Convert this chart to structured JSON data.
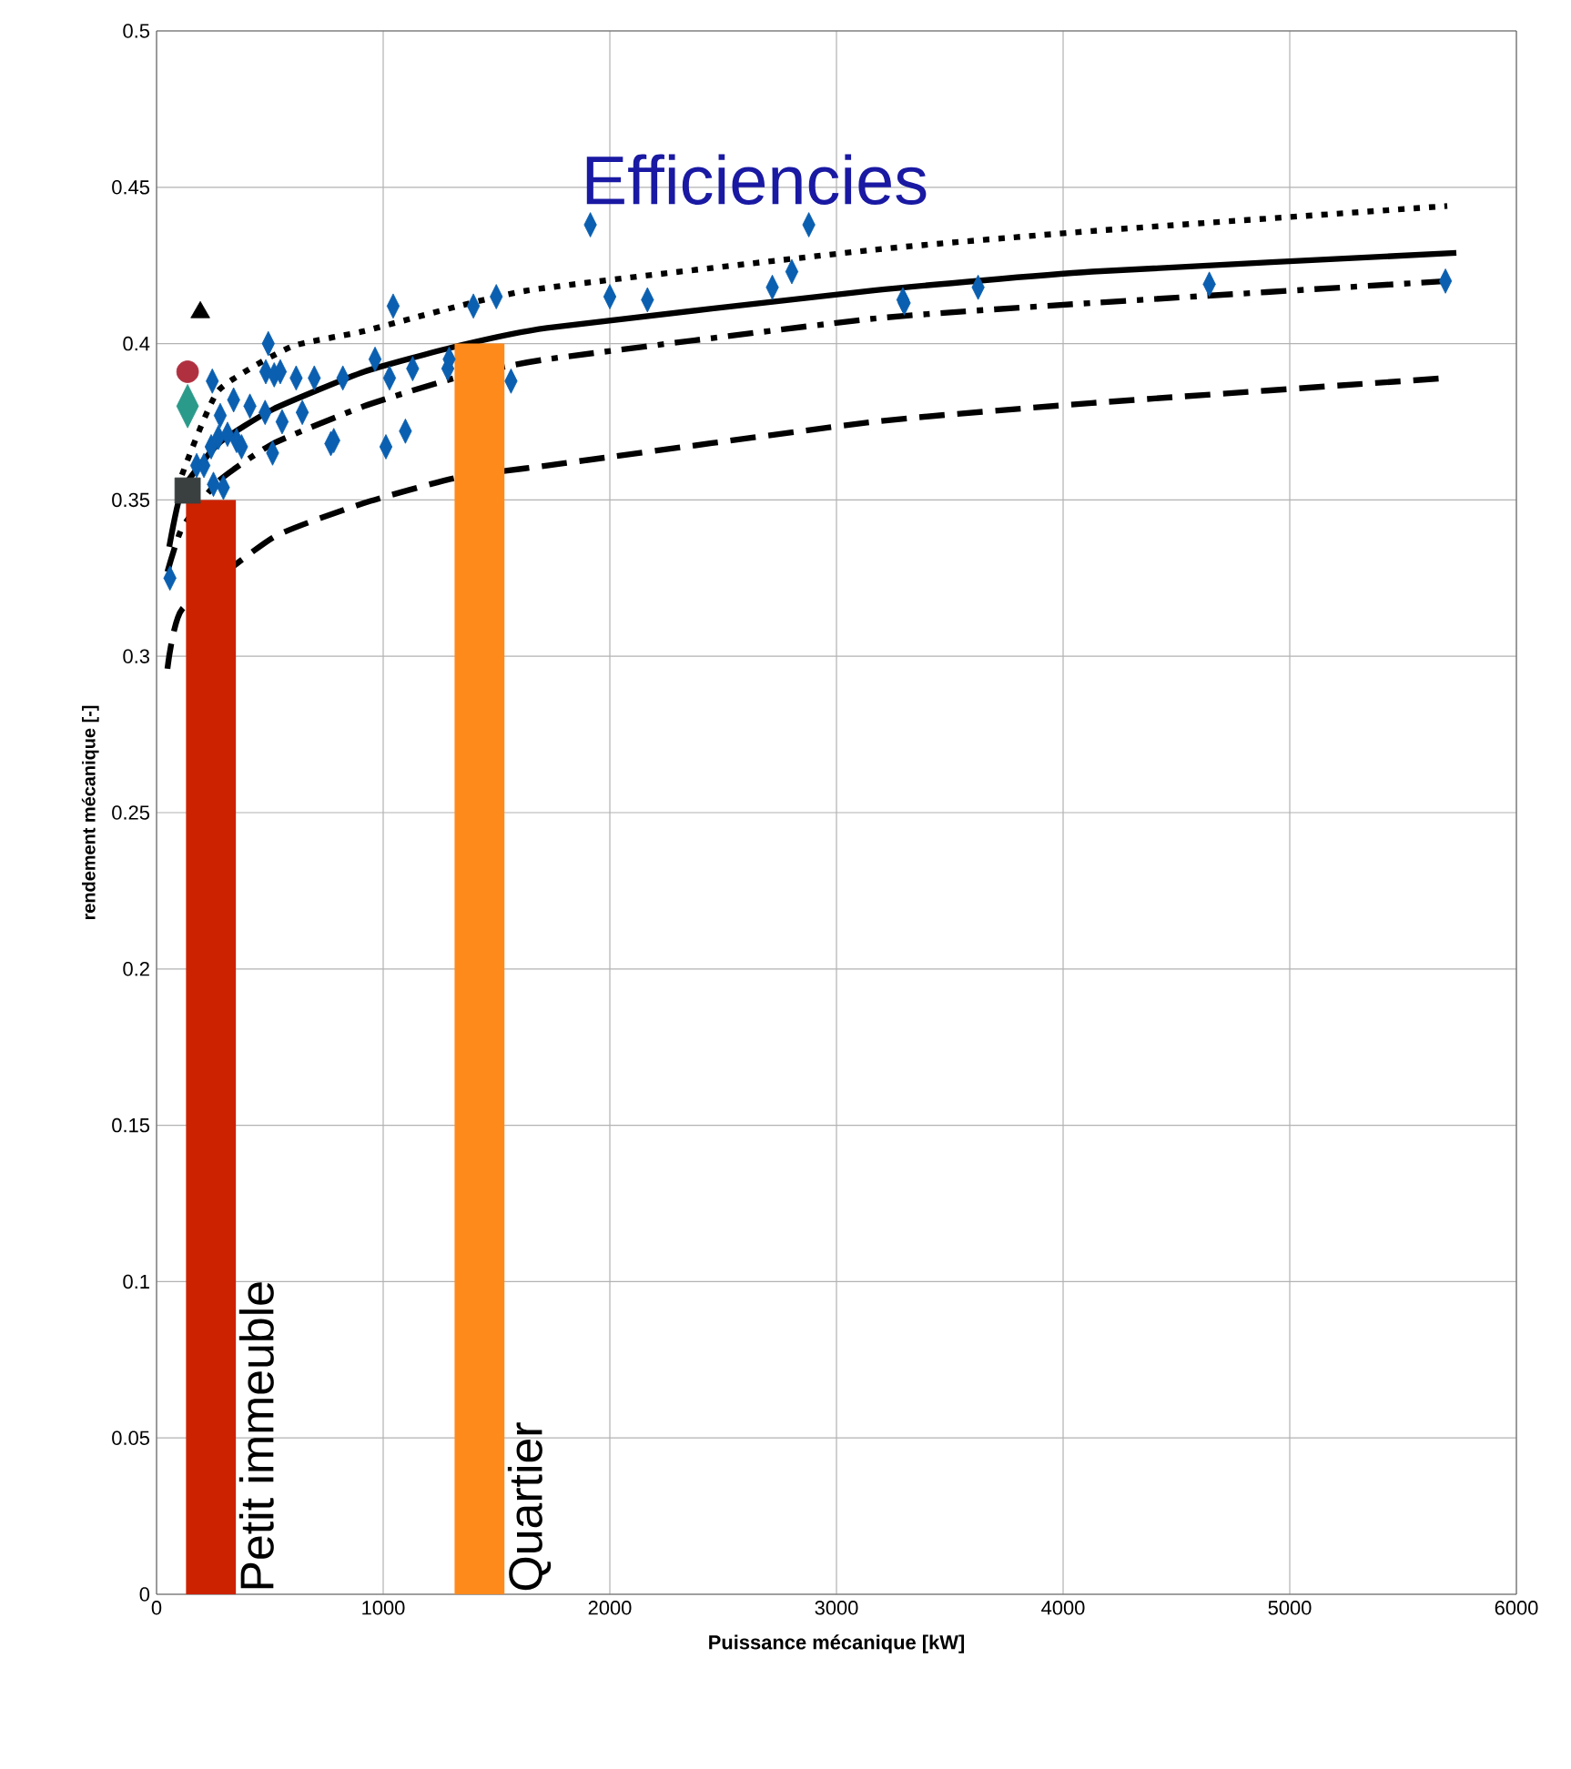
{
  "chart_data": {
    "type": "scatter",
    "title": "Efficiencies",
    "xlabel": "Puissance mécanique [kW]",
    "ylabel": "rendement mécanique [-]",
    "xlim": [
      0,
      6000
    ],
    "ylim": [
      0,
      0.5
    ],
    "xticks": [
      0,
      1000,
      2000,
      3000,
      4000,
      5000,
      6000
    ],
    "yticks": [
      0,
      0.05,
      0.1,
      0.15,
      0.2,
      0.25,
      0.3,
      0.35,
      0.4,
      0.45,
      0.5
    ],
    "grid": true,
    "series": [
      {
        "type": "line",
        "line_style": "dotted",
        "color": "#000000",
        "x": [
          112,
          273,
          594,
          916,
          1639,
          3165,
          4128,
          5695
        ],
        "values": [
          0.358,
          0.385,
          0.399,
          0.404,
          0.417,
          0.43,
          0.436,
          0.444
        ]
      },
      {
        "type": "line",
        "line_style": "solid",
        "color": "#000000",
        "x": [
          56,
          112,
          273,
          514,
          916,
          1317,
          1723,
          3165,
          4128,
          5735
        ],
        "values": [
          0.335,
          0.353,
          0.368,
          0.379,
          0.391,
          0.399,
          0.405,
          0.417,
          0.423,
          0.429
        ]
      },
      {
        "type": "line",
        "line_style": "dashdot",
        "color": "#000000",
        "x": [
          48,
          112,
          273,
          514,
          916,
          1317,
          1723,
          3165,
          4128,
          5695
        ],
        "values": [
          0.327,
          0.341,
          0.356,
          0.368,
          0.38,
          0.389,
          0.395,
          0.408,
          0.413,
          0.42
        ]
      },
      {
        "type": "line",
        "line_style": "dashed",
        "color": "#000000",
        "x": [
          48,
          112,
          273,
          514,
          916,
          1317,
          1723,
          3165,
          4128,
          5695
        ],
        "values": [
          0.296,
          0.315,
          null,
          0.338,
          0.349,
          0.357,
          0.361,
          0.375,
          0.381,
          0.389
        ]
      },
      {
        "type": "bar",
        "name": "Petit immeuble",
        "color": "#cc2200",
        "x": [
          240
        ],
        "values": [
          0.35
        ]
      },
      {
        "type": "bar",
        "name": "Quartier",
        "color": "#ff8a1c",
        "x": [
          1425
        ],
        "values": [
          0.4
        ]
      },
      {
        "marker": "diamond",
        "color": "#0a5fb0",
        "x": [
          59,
          246,
          493,
          340,
          281,
          412,
          482,
          519,
          546,
          479,
          554,
          616,
          696,
          643,
          822,
          769,
          782,
          964,
          1028,
          1130,
          1012,
          1098,
          1044,
          1398,
          1499,
          1285,
          1291,
          1564,
          241,
          273,
          313,
          353,
          375,
          177,
          209,
          251,
          295,
          512,
          1914,
          2000,
          2166,
          2717,
          2803,
          2878,
          3293,
          3299,
          3625,
          4645,
          5687
        ],
        "values": [
          0.325,
          0.388,
          0.4,
          0.382,
          0.377,
          0.38,
          0.391,
          0.39,
          0.391,
          0.378,
          0.375,
          0.389,
          0.389,
          0.378,
          0.389,
          0.368,
          0.369,
          0.395,
          0.389,
          0.392,
          0.367,
          0.372,
          0.412,
          0.412,
          0.415,
          0.392,
          0.395,
          0.388,
          0.367,
          0.37,
          0.371,
          0.369,
          0.367,
          0.361,
          0.361,
          0.355,
          0.354,
          0.365,
          0.438,
          0.415,
          0.414,
          0.418,
          0.423,
          0.438,
          0.414,
          0.413,
          0.418,
          0.419,
          0.42
        ]
      },
      {
        "marker": "triangle",
        "color": "#000000",
        "x": [
          193
        ],
        "values": [
          0.41
        ]
      },
      {
        "marker": "circle",
        "color": "#b03040",
        "x": [
          137
        ],
        "values": [
          0.391
        ]
      },
      {
        "marker": "diamond",
        "color": "#2a9a8a",
        "x": [
          137
        ],
        "values": [
          0.38
        ]
      },
      {
        "marker": "square",
        "color": "#3a4040",
        "x": [
          137
        ],
        "values": [
          0.353
        ]
      }
    ]
  }
}
